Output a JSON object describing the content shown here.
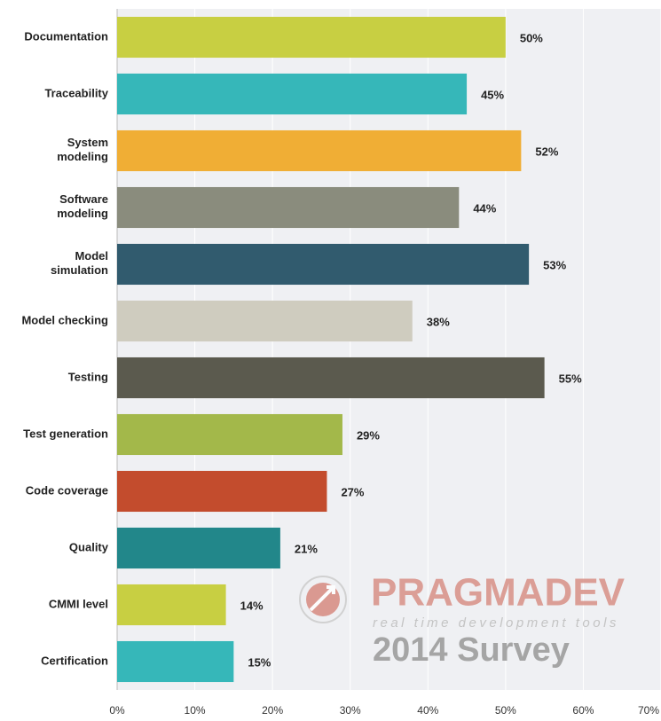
{
  "chart_data": {
    "type": "hbar",
    "categories": [
      "Documentation",
      "Traceability",
      "System\nmodeling",
      "Software\nmodeling",
      "Model\nsimulation",
      "Model checking",
      "Testing",
      "Test generation",
      "Code coverage",
      "Quality",
      "CMMI level",
      "Certification"
    ],
    "values": [
      50,
      45,
      52,
      44,
      53,
      38,
      55,
      29,
      27,
      21,
      14,
      15
    ],
    "value_labels": [
      "50%",
      "45%",
      "52%",
      "44%",
      "53%",
      "38%",
      "55%",
      "29%",
      "27%",
      "21%",
      "14%",
      "15%"
    ],
    "colors": [
      "#c8cf42",
      "#36b7b9",
      "#f0ae35",
      "#8a8c7d",
      "#315b6e",
      "#cfccbf",
      "#5b5a4e",
      "#a3b84a",
      "#c34c2d",
      "#22878a",
      "#c8cf42",
      "#36b7b9"
    ],
    "xlim": [
      0,
      70
    ],
    "xticks": [
      {
        "value": 0,
        "label": "0%"
      },
      {
        "value": 10,
        "label": "10%"
      },
      {
        "value": 20,
        "label": "20%"
      },
      {
        "value": 30,
        "label": "30%"
      },
      {
        "value": 40,
        "label": "40%"
      },
      {
        "value": 50,
        "label": "50%"
      },
      {
        "value": 60,
        "label": "60%"
      },
      {
        "value": 70,
        "label": "70%"
      }
    ],
    "grid": true,
    "watermark": {
      "brand": "PRAGMADEV",
      "tagline": "real time development tools",
      "survey": "2014 Survey"
    }
  }
}
